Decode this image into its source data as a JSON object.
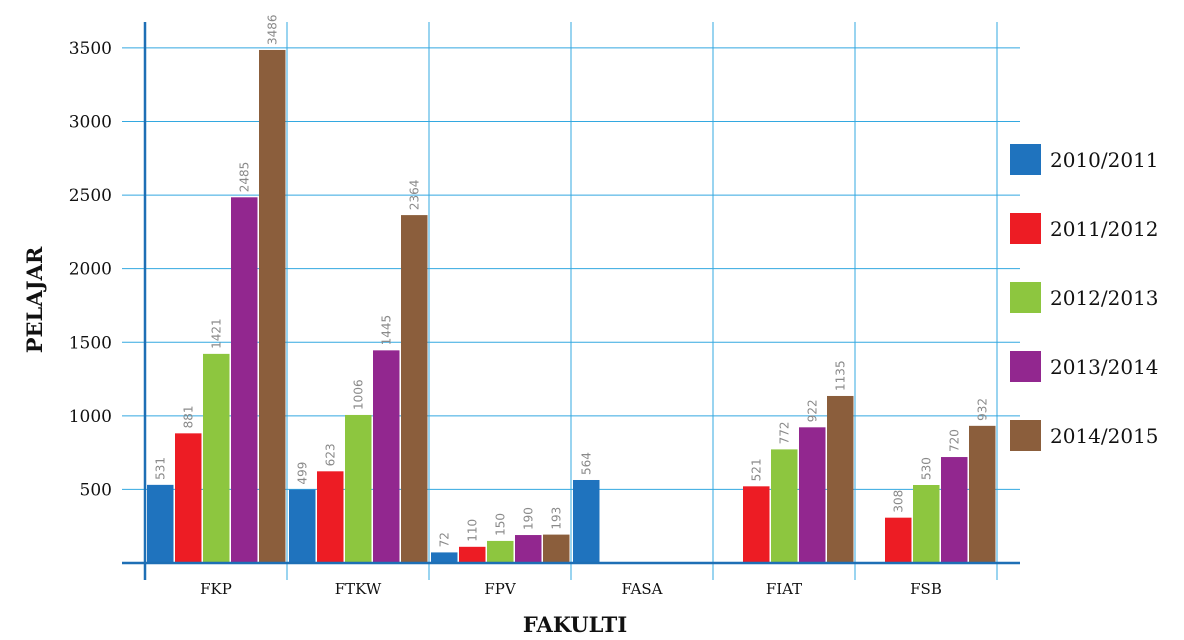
{
  "chart_data": {
    "type": "bar",
    "xlabel": "FAKULTI",
    "ylabel": "PELAJAR",
    "categories": [
      "FKP",
      "FTKW",
      "FPV",
      "FASA",
      "FIAT",
      "FSB"
    ],
    "ylim": [
      0,
      3600
    ],
    "yticks": [
      500,
      1000,
      1500,
      2000,
      2500,
      3000,
      3500
    ],
    "grid": true,
    "legend_position": "right",
    "series": [
      {
        "name": "2010/2011",
        "color": "#1f73be",
        "values": [
          531,
          499,
          72,
          564,
          null,
          null
        ]
      },
      {
        "name": "2011/2012",
        "color": "#ed1c24",
        "values": [
          881,
          623,
          110,
          null,
          521,
          308
        ]
      },
      {
        "name": "2012/2013",
        "color": "#8dc63f",
        "values": [
          1421,
          1006,
          150,
          null,
          772,
          530
        ]
      },
      {
        "name": "2013/2014",
        "color": "#92278f",
        "values": [
          2485,
          1445,
          190,
          null,
          922,
          720
        ]
      },
      {
        "name": "2014/2015",
        "color": "#8b5e3c",
        "values": [
          3486,
          2364,
          193,
          null,
          1135,
          932
        ]
      }
    ]
  }
}
